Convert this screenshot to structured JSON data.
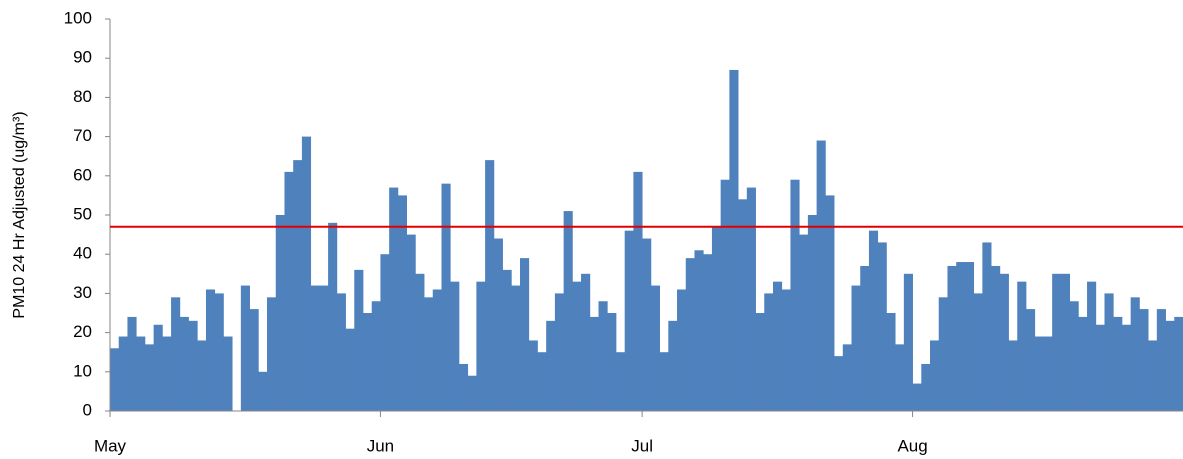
{
  "chart_data": {
    "type": "bar",
    "y_label": "PM10 24 Hr Adjusted (ug/m³)",
    "categories": [
      "May",
      null,
      null,
      null,
      null,
      null,
      null,
      null,
      null,
      null,
      null,
      null,
      null,
      null,
      null,
      null,
      null,
      null,
      null,
      null,
      null,
      null,
      null,
      null,
      null,
      null,
      null,
      null,
      null,
      null,
      null,
      "Jun",
      null,
      null,
      null,
      null,
      null,
      null,
      null,
      null,
      null,
      null,
      null,
      null,
      null,
      null,
      null,
      null,
      null,
      null,
      null,
      null,
      null,
      null,
      null,
      null,
      null,
      null,
      null,
      null,
      null,
      "Jul",
      null,
      null,
      null,
      null,
      null,
      null,
      null,
      null,
      null,
      null,
      null,
      null,
      null,
      null,
      null,
      null,
      null,
      null,
      null,
      null,
      null,
      null,
      null,
      null,
      null,
      null,
      null,
      null,
      null,
      null,
      "Aug",
      null,
      null,
      null,
      null,
      null,
      null,
      null,
      null,
      null,
      null,
      null,
      null,
      null,
      null,
      null,
      null,
      null,
      null,
      null,
      null,
      null,
      null,
      null,
      null,
      null,
      null,
      null,
      null,
      null,
      null
    ],
    "values": [
      16,
      19,
      24,
      19,
      17,
      22,
      19,
      29,
      24,
      23,
      18,
      31,
      30,
      19,
      0,
      32,
      26,
      10,
      29,
      50,
      61,
      64,
      70,
      32,
      32,
      48,
      30,
      21,
      36,
      25,
      28,
      40,
      57,
      55,
      45,
      35,
      29,
      31,
      58,
      33,
      12,
      9,
      33,
      64,
      44,
      36,
      32,
      39,
      18,
      15,
      23,
      30,
      51,
      33,
      35,
      24,
      28,
      25,
      15,
      46,
      61,
      44,
      32,
      15,
      23,
      31,
      39,
      41,
      40,
      47,
      59,
      87,
      54,
      57,
      25,
      30,
      33,
      31,
      59,
      45,
      50,
      69,
      55,
      14,
      17,
      32,
      37,
      46,
      43,
      25,
      17,
      35,
      7,
      12,
      18,
      29,
      37,
      38,
      38,
      30,
      43,
      37,
      35,
      18,
      33,
      26,
      19,
      19,
      35,
      35,
      28,
      24,
      33,
      22,
      30,
      24,
      22,
      29,
      26,
      18,
      26,
      23,
      24
    ],
    "color": "#4f81bd",
    "reference_line": {
      "value": 47,
      "color": "#e00000"
    },
    "ylim": [
      0,
      100
    ],
    "yticks": [
      0,
      10,
      20,
      30,
      40,
      50,
      60,
      70,
      80,
      90,
      100
    ]
  }
}
